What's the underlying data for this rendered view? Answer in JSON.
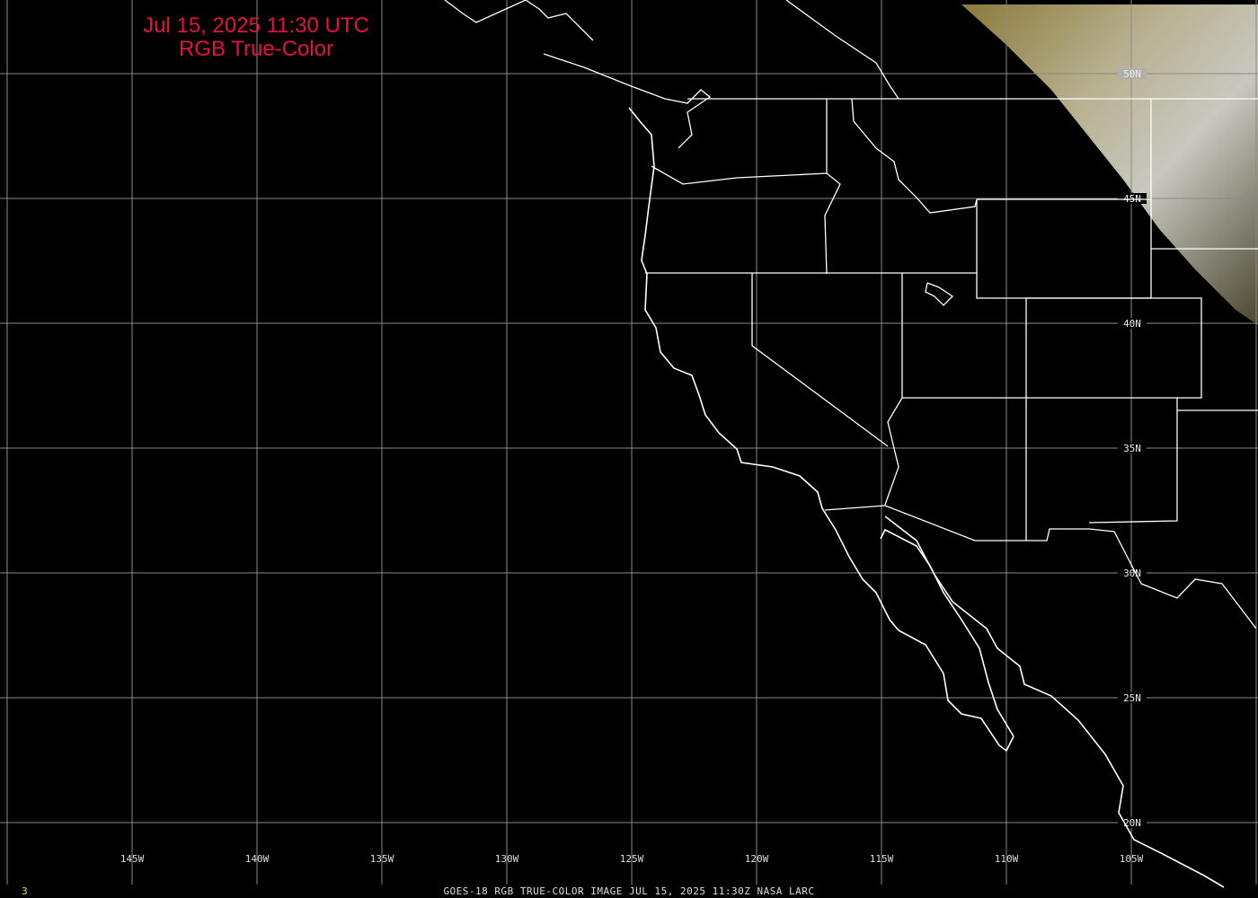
{
  "title": {
    "line1": "Jul 15, 2025 11:30 UTC",
    "line2": "RGB True-Color"
  },
  "caption": "GOES-18 RGB TRUE-COLOR IMAGE   JUL 15, 2025 11:30Z   NASA LARC",
  "frame_number": "3",
  "longitude_labels": [
    "145W",
    "140W",
    "135W",
    "130W",
    "125W",
    "120W",
    "115W",
    "110W",
    "105W"
  ],
  "latitude_labels": [
    "50N",
    "45N",
    "40N",
    "35N",
    "30N",
    "25N",
    "20N"
  ],
  "colors": {
    "title": "#e0143c",
    "grid": "#8a8a8a",
    "coastline": "#ffffff",
    "frame_number": "#e8d060"
  }
}
